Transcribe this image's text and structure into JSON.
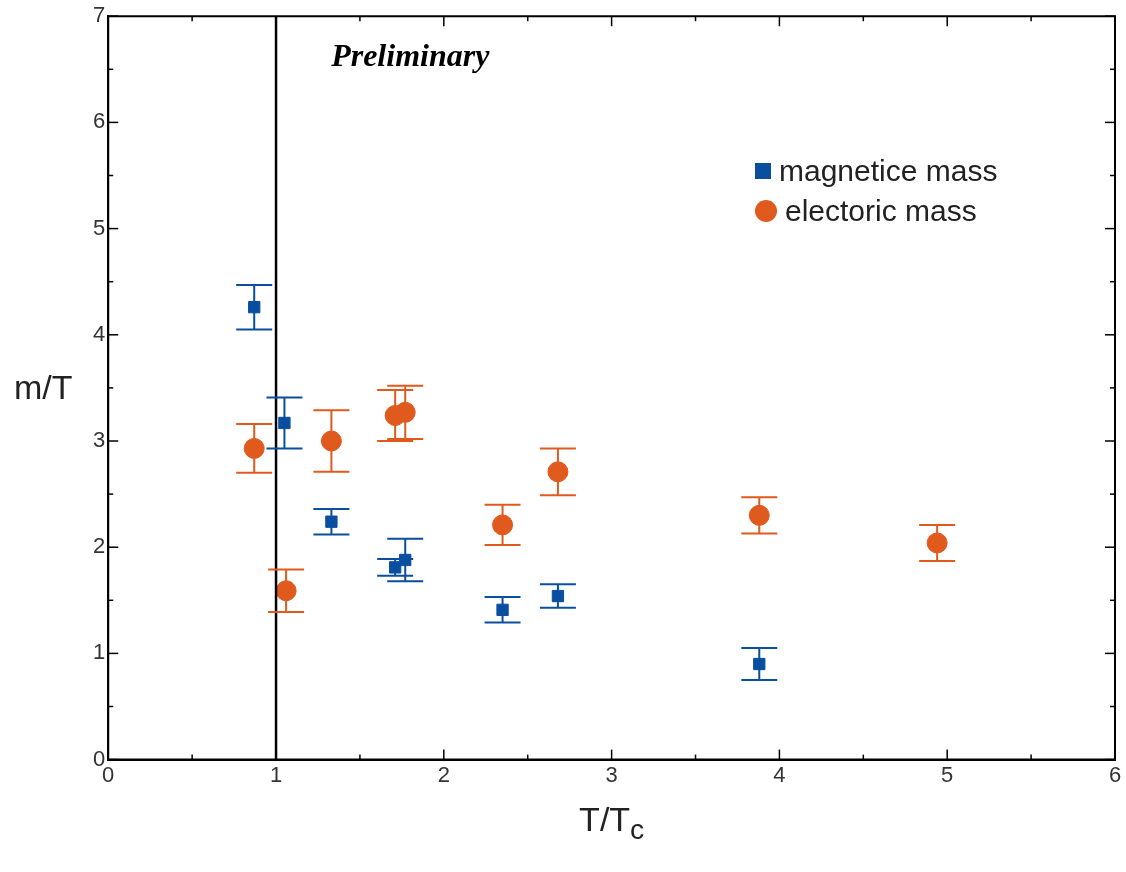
{
  "chart_data": {
    "type": "scatter",
    "xlabel": "T/T$_{c}$",
    "ylabel": "m/T",
    "annotations": [
      "Preliminary"
    ],
    "xlim": [
      0,
      6
    ],
    "xticks": [
      0,
      1,
      2,
      3,
      4,
      5,
      6
    ],
    "ylim": [
      0,
      7
    ],
    "yticks": [
      0,
      1,
      2,
      3,
      4,
      5,
      6,
      7
    ],
    "legend": "top right",
    "ref_lines": [
      {
        "axis": "x",
        "value": 1,
        "color": "#000000"
      }
    ],
    "series": [
      {
        "name": "magnetice mass",
        "color": "#0a4ea0",
        "marker": "square",
        "x": [
          0.87,
          1.05,
          1.33,
          1.71,
          1.77,
          2.35,
          2.68,
          3.88
        ],
        "values": [
          4.26,
          3.17,
          2.24,
          1.81,
          1.88,
          1.41,
          1.54,
          0.9
        ],
        "errors": [
          0.21,
          0.24,
          0.12,
          0.08,
          0.2,
          0.12,
          0.11,
          0.15
        ]
      },
      {
        "name": "electoric mass",
        "color": "#e05a1e",
        "marker": "circle",
        "x": [
          0.87,
          1.06,
          1.33,
          1.71,
          1.77,
          2.35,
          2.68,
          3.88,
          4.94
        ],
        "values": [
          2.93,
          1.59,
          3.0,
          3.24,
          3.27,
          2.21,
          2.71,
          2.3,
          2.04
        ],
        "errors": [
          0.23,
          0.2,
          0.29,
          0.24,
          0.25,
          0.19,
          0.22,
          0.17,
          0.17
        ]
      }
    ]
  }
}
